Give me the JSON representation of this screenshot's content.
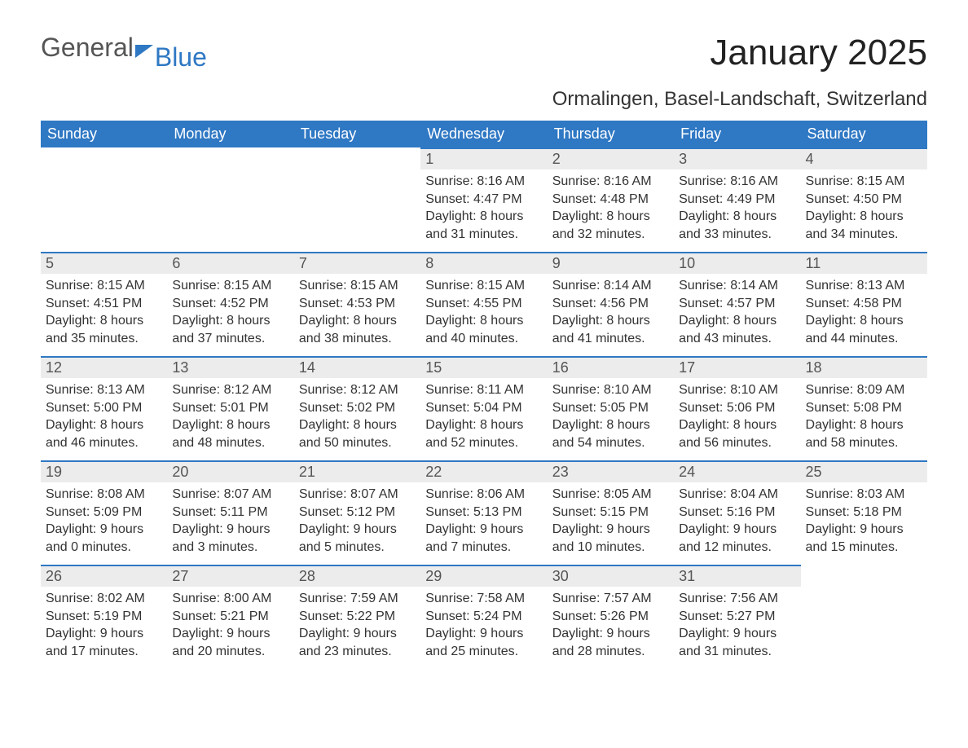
{
  "logo": {
    "general": "General",
    "blue": "Blue"
  },
  "title": "January 2025",
  "subtitle": "Ormalingen, Basel-Landschaft, Switzerland",
  "colors": {
    "header_bg": "#2f78c4",
    "header_text": "#ffffff",
    "daynum_bg": "#ececec",
    "daynum_border": "#2f78c4",
    "body_text": "#333333",
    "logo_blue": "#2f78c4"
  },
  "day_headers": [
    "Sunday",
    "Monday",
    "Tuesday",
    "Wednesday",
    "Thursday",
    "Friday",
    "Saturday"
  ],
  "weeks": [
    [
      null,
      null,
      null,
      {
        "n": "1",
        "sunrise": "Sunrise: 8:16 AM",
        "sunset": "Sunset: 4:47 PM",
        "daylight": "Daylight: 8 hours and 31 minutes."
      },
      {
        "n": "2",
        "sunrise": "Sunrise: 8:16 AM",
        "sunset": "Sunset: 4:48 PM",
        "daylight": "Daylight: 8 hours and 32 minutes."
      },
      {
        "n": "3",
        "sunrise": "Sunrise: 8:16 AM",
        "sunset": "Sunset: 4:49 PM",
        "daylight": "Daylight: 8 hours and 33 minutes."
      },
      {
        "n": "4",
        "sunrise": "Sunrise: 8:15 AM",
        "sunset": "Sunset: 4:50 PM",
        "daylight": "Daylight: 8 hours and 34 minutes."
      }
    ],
    [
      {
        "n": "5",
        "sunrise": "Sunrise: 8:15 AM",
        "sunset": "Sunset: 4:51 PM",
        "daylight": "Daylight: 8 hours and 35 minutes."
      },
      {
        "n": "6",
        "sunrise": "Sunrise: 8:15 AM",
        "sunset": "Sunset: 4:52 PM",
        "daylight": "Daylight: 8 hours and 37 minutes."
      },
      {
        "n": "7",
        "sunrise": "Sunrise: 8:15 AM",
        "sunset": "Sunset: 4:53 PM",
        "daylight": "Daylight: 8 hours and 38 minutes."
      },
      {
        "n": "8",
        "sunrise": "Sunrise: 8:15 AM",
        "sunset": "Sunset: 4:55 PM",
        "daylight": "Daylight: 8 hours and 40 minutes."
      },
      {
        "n": "9",
        "sunrise": "Sunrise: 8:14 AM",
        "sunset": "Sunset: 4:56 PM",
        "daylight": "Daylight: 8 hours and 41 minutes."
      },
      {
        "n": "10",
        "sunrise": "Sunrise: 8:14 AM",
        "sunset": "Sunset: 4:57 PM",
        "daylight": "Daylight: 8 hours and 43 minutes."
      },
      {
        "n": "11",
        "sunrise": "Sunrise: 8:13 AM",
        "sunset": "Sunset: 4:58 PM",
        "daylight": "Daylight: 8 hours and 44 minutes."
      }
    ],
    [
      {
        "n": "12",
        "sunrise": "Sunrise: 8:13 AM",
        "sunset": "Sunset: 5:00 PM",
        "daylight": "Daylight: 8 hours and 46 minutes."
      },
      {
        "n": "13",
        "sunrise": "Sunrise: 8:12 AM",
        "sunset": "Sunset: 5:01 PM",
        "daylight": "Daylight: 8 hours and 48 minutes."
      },
      {
        "n": "14",
        "sunrise": "Sunrise: 8:12 AM",
        "sunset": "Sunset: 5:02 PM",
        "daylight": "Daylight: 8 hours and 50 minutes."
      },
      {
        "n": "15",
        "sunrise": "Sunrise: 8:11 AM",
        "sunset": "Sunset: 5:04 PM",
        "daylight": "Daylight: 8 hours and 52 minutes."
      },
      {
        "n": "16",
        "sunrise": "Sunrise: 8:10 AM",
        "sunset": "Sunset: 5:05 PM",
        "daylight": "Daylight: 8 hours and 54 minutes."
      },
      {
        "n": "17",
        "sunrise": "Sunrise: 8:10 AM",
        "sunset": "Sunset: 5:06 PM",
        "daylight": "Daylight: 8 hours and 56 minutes."
      },
      {
        "n": "18",
        "sunrise": "Sunrise: 8:09 AM",
        "sunset": "Sunset: 5:08 PM",
        "daylight": "Daylight: 8 hours and 58 minutes."
      }
    ],
    [
      {
        "n": "19",
        "sunrise": "Sunrise: 8:08 AM",
        "sunset": "Sunset: 5:09 PM",
        "daylight": "Daylight: 9 hours and 0 minutes."
      },
      {
        "n": "20",
        "sunrise": "Sunrise: 8:07 AM",
        "sunset": "Sunset: 5:11 PM",
        "daylight": "Daylight: 9 hours and 3 minutes."
      },
      {
        "n": "21",
        "sunrise": "Sunrise: 8:07 AM",
        "sunset": "Sunset: 5:12 PM",
        "daylight": "Daylight: 9 hours and 5 minutes."
      },
      {
        "n": "22",
        "sunrise": "Sunrise: 8:06 AM",
        "sunset": "Sunset: 5:13 PM",
        "daylight": "Daylight: 9 hours and 7 minutes."
      },
      {
        "n": "23",
        "sunrise": "Sunrise: 8:05 AM",
        "sunset": "Sunset: 5:15 PM",
        "daylight": "Daylight: 9 hours and 10 minutes."
      },
      {
        "n": "24",
        "sunrise": "Sunrise: 8:04 AM",
        "sunset": "Sunset: 5:16 PM",
        "daylight": "Daylight: 9 hours and 12 minutes."
      },
      {
        "n": "25",
        "sunrise": "Sunrise: 8:03 AM",
        "sunset": "Sunset: 5:18 PM",
        "daylight": "Daylight: 9 hours and 15 minutes."
      }
    ],
    [
      {
        "n": "26",
        "sunrise": "Sunrise: 8:02 AM",
        "sunset": "Sunset: 5:19 PM",
        "daylight": "Daylight: 9 hours and 17 minutes."
      },
      {
        "n": "27",
        "sunrise": "Sunrise: 8:00 AM",
        "sunset": "Sunset: 5:21 PM",
        "daylight": "Daylight: 9 hours and 20 minutes."
      },
      {
        "n": "28",
        "sunrise": "Sunrise: 7:59 AM",
        "sunset": "Sunset: 5:22 PM",
        "daylight": "Daylight: 9 hours and 23 minutes."
      },
      {
        "n": "29",
        "sunrise": "Sunrise: 7:58 AM",
        "sunset": "Sunset: 5:24 PM",
        "daylight": "Daylight: 9 hours and 25 minutes."
      },
      {
        "n": "30",
        "sunrise": "Sunrise: 7:57 AM",
        "sunset": "Sunset: 5:26 PM",
        "daylight": "Daylight: 9 hours and 28 minutes."
      },
      {
        "n": "31",
        "sunrise": "Sunrise: 7:56 AM",
        "sunset": "Sunset: 5:27 PM",
        "daylight": "Daylight: 9 hours and 31 minutes."
      },
      null
    ]
  ]
}
